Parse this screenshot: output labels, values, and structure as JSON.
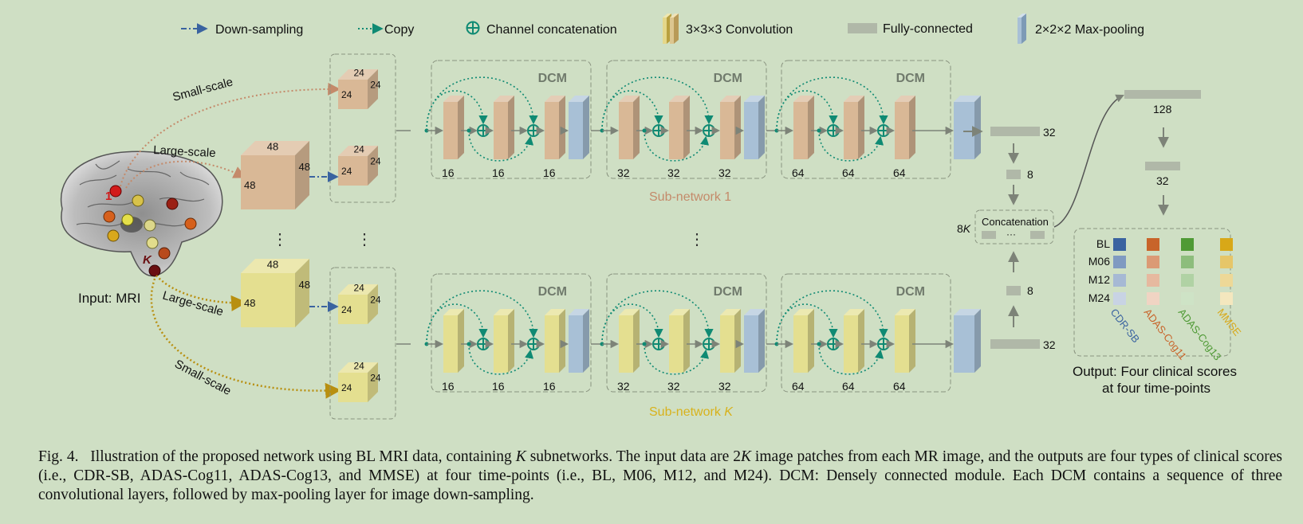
{
  "legend": {
    "downsampling": "Down-sampling",
    "copy": "Copy",
    "concat": "Channel concatenation",
    "conv": "3×3×3 Convolution",
    "fc": "Fully-connected",
    "pool": "2×2×2 Max-pooling"
  },
  "input": {
    "label": "Input: MRI",
    "landmark_first": "1",
    "landmark_last": "K"
  },
  "scales": {
    "small": "Small-scale",
    "large": "Large-scale"
  },
  "cubes": {
    "large": "48",
    "small": "24"
  },
  "dcm_label": "DCM",
  "channels": [
    "16",
    "16",
    "16",
    "32",
    "32",
    "32",
    "64",
    "64",
    "64"
  ],
  "subnetworks": {
    "first_prefix": "Sub-network ",
    "first_index": "1",
    "last_prefix": "Sub-network ",
    "last_index": "K"
  },
  "ellipsis": "⋮",
  "fusion": {
    "fc_top": "32",
    "fc_mid_top": "8",
    "fc_mid_bottom": "8",
    "fc_bottom": "32",
    "concat_label": "Concatenation",
    "concat_dots": "···",
    "concat_size_num": "8",
    "concat_size_var": "K",
    "head_fc1": "128",
    "head_fc2": "32"
  },
  "output": {
    "timepoints": [
      "BL",
      "M06",
      "M12",
      "M24"
    ],
    "scores": [
      "CDR-SB",
      "ADAS-Cog11",
      "ADAS-Cog13",
      "MMSE"
    ],
    "label_line1": "Output: Four clinical scores",
    "label_line2": "at four time-points"
  },
  "colors": {
    "background": "#cfdfc4",
    "cdr": "#3a63a0",
    "adas11": "#c8642a",
    "adas13": "#4f9a35",
    "mmse": "#d8a818",
    "teal": "#0f8a73",
    "branch1_cube": "#d9b896",
    "branchK_cube": "#e4df90",
    "pool": "#a8c0d6"
  },
  "caption": {
    "p1": "Fig. 4.   Illustration of the proposed network using BL MRI data, containing ",
    "k1": "K",
    "p2": " subnetworks. The input data are 2",
    "k2": "K",
    "p3": " image patches from each MR image, and the outputs are four types of clinical scores (i.e., CDR-SB, ADAS-Cog11, ADAS-Cog13, and MMSE) at four time-points (i.e., BL, M06, M12, and M24). DCM: Densely connected module. Each DCM contains a sequence of three convolutional layers, followed by max-pooling layer for image down-sampling."
  }
}
